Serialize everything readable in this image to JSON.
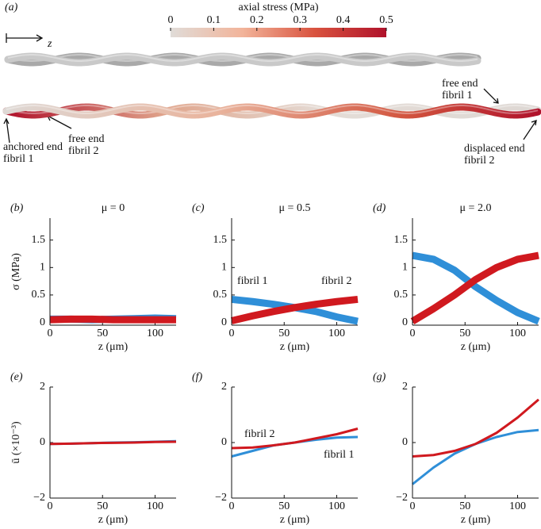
{
  "chart_data": [
    {
      "type": "colorbar",
      "panel_label": "(a)",
      "title": "axial stress (MPa)",
      "xlim": [
        0,
        0.5
      ],
      "xticks": [
        0,
        0.1,
        0.2,
        0.3,
        0.4,
        0.5
      ],
      "colors": [
        "#e0dcd8",
        "#f2b49a",
        "#d9533f",
        "#b0122b"
      ],
      "annotations": [
        {
          "lines": [
            "z"
          ]
        },
        {
          "lines": [
            "free end",
            "fibril 1"
          ]
        },
        {
          "lines": [
            "anchored end",
            "fibril 1"
          ]
        },
        {
          "lines": [
            "free end",
            "fibril 2"
          ]
        },
        {
          "lines": [
            "displaced end",
            "fibril 2"
          ]
        }
      ]
    },
    {
      "type": "line",
      "panel_label": "(b)",
      "title": "μ = 0",
      "x_label": "z (μm)",
      "y_label": "σ (MPa)",
      "x": [
        0,
        20,
        40,
        60,
        80,
        100,
        120
      ],
      "xlim": [
        0,
        120
      ],
      "xticks": [
        0,
        50,
        100
      ],
      "ylim": [
        -0.05,
        1.9
      ],
      "yticks": [
        0,
        0.5,
        1,
        1.5
      ],
      "series": [
        {
          "color": "#2f8fd8",
          "values": [
            0.06,
            0.06,
            0.05,
            0.06,
            0.07,
            0.08,
            0.07
          ]
        },
        {
          "color": "#d0191f",
          "values": [
            0.05,
            0.06,
            0.06,
            0.05,
            0.05,
            0.05,
            0.05
          ]
        }
      ]
    },
    {
      "type": "line",
      "panel_label": "(c)",
      "title": "μ = 0.5",
      "x_label": "z (μm)",
      "x": [
        0,
        20,
        40,
        60,
        80,
        100,
        120
      ],
      "xlim": [
        0,
        120
      ],
      "xticks": [
        0,
        50,
        100
      ],
      "ylim": [
        -0.05,
        1.9
      ],
      "yticks": [
        0,
        0.5,
        1,
        1.5
      ],
      "series": [
        {
          "name": "fibril 1",
          "color": "#2f8fd8",
          "values": [
            0.42,
            0.38,
            0.33,
            0.27,
            0.2,
            0.1,
            0.02
          ]
        },
        {
          "name": "fibril 2",
          "color": "#d0191f",
          "values": [
            0.03,
            0.12,
            0.2,
            0.27,
            0.33,
            0.38,
            0.42
          ]
        }
      ]
    },
    {
      "type": "line",
      "panel_label": "(d)",
      "title": "μ = 2.0",
      "x_label": "z (μm)",
      "x": [
        0,
        20,
        40,
        60,
        80,
        100,
        120
      ],
      "xlim": [
        0,
        120
      ],
      "xticks": [
        0,
        50,
        100
      ],
      "ylim": [
        -0.05,
        1.9
      ],
      "yticks": [
        0,
        0.5,
        1,
        1.5
      ],
      "series": [
        {
          "color": "#2f8fd8",
          "values": [
            1.22,
            1.15,
            0.95,
            0.65,
            0.4,
            0.18,
            0.02
          ]
        },
        {
          "color": "#d0191f",
          "values": [
            0.02,
            0.25,
            0.5,
            0.78,
            1.0,
            1.15,
            1.22
          ]
        }
      ]
    },
    {
      "type": "line",
      "panel_label": "(e)",
      "x_label": "z (μm)",
      "y_label": "ū (×10⁻³)",
      "x": [
        0,
        20,
        40,
        60,
        80,
        100,
        120
      ],
      "xlim": [
        0,
        120
      ],
      "xticks": [
        0,
        50,
        100
      ],
      "ylim": [
        -2,
        2
      ],
      "yticks": [
        {
          "value": -2,
          "label": "−2"
        },
        0,
        2
      ],
      "series": [
        {
          "color": "#2f8fd8",
          "values": [
            -0.05,
            -0.04,
            -0.02,
            0.0,
            0.01,
            0.03,
            0.05
          ]
        },
        {
          "color": "#d0191f",
          "values": [
            -0.05,
            -0.04,
            -0.02,
            -0.01,
            0.0,
            0.02,
            0.03
          ]
        }
      ]
    },
    {
      "type": "line",
      "panel_label": "(f)",
      "x_label": "z (μm)",
      "x": [
        0,
        20,
        40,
        60,
        80,
        100,
        120
      ],
      "xlim": [
        0,
        120
      ],
      "xticks": [
        0,
        50,
        100
      ],
      "ylim": [
        -2,
        2
      ],
      "yticks": [
        {
          "value": -2,
          "label": "−2"
        },
        0,
        2
      ],
      "series": [
        {
          "name": "fibril 1",
          "color": "#2f8fd8",
          "values": [
            -0.5,
            -0.3,
            -0.1,
            0.0,
            0.1,
            0.18,
            0.2
          ]
        },
        {
          "name": "fibril 2",
          "color": "#d0191f",
          "values": [
            -0.2,
            -0.18,
            -0.1,
            0.0,
            0.15,
            0.3,
            0.5
          ]
        }
      ]
    },
    {
      "type": "line",
      "panel_label": "(g)",
      "x_label": "z (μm)",
      "x": [
        0,
        20,
        40,
        60,
        80,
        100,
        120
      ],
      "xlim": [
        0,
        120
      ],
      "xticks": [
        0,
        50,
        100
      ],
      "ylim": [
        -2,
        2
      ],
      "yticks": [
        {
          "value": -2,
          "label": "−2"
        },
        0,
        2
      ],
      "series": [
        {
          "color": "#2f8fd8",
          "values": [
            -1.5,
            -0.9,
            -0.4,
            -0.05,
            0.2,
            0.38,
            0.45
          ]
        },
        {
          "color": "#d0191f",
          "values": [
            -0.5,
            -0.45,
            -0.3,
            -0.05,
            0.35,
            0.9,
            1.55
          ]
        }
      ]
    }
  ]
}
